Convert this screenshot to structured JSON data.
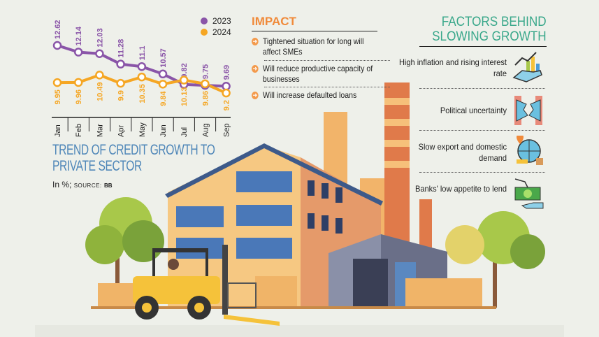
{
  "chart_data": {
    "type": "line",
    "title": "TREND OF CREDIT GROWTH TO PRIVATE SECTOR",
    "subtitle": "In %;",
    "source_label": "SOURCE:",
    "source": "BB",
    "categories": [
      "Jan",
      "Feb",
      "Mar",
      "Apr",
      "May",
      "Jun",
      "Jul",
      "Aug",
      "Sep"
    ],
    "series": [
      {
        "name": "2023",
        "color": "#8a55a8",
        "values": [
          12.62,
          12.14,
          12.03,
          11.28,
          11.1,
          10.57,
          9.82,
          9.75,
          9.69
        ]
      },
      {
        "name": "2024",
        "color": "#f5a623",
        "values": [
          9.95,
          9.96,
          10.49,
          9.9,
          10.35,
          9.84,
          10.13,
          9.86,
          9.2
        ]
      }
    ],
    "legend_position": "top-right",
    "grid": false
  },
  "impact": {
    "heading": "IMPACT",
    "items": [
      "Tightened situation for long will affect SMEs",
      "Will reduce productive capacity of businesses",
      "Will increase defaulted loans"
    ]
  },
  "factors": {
    "heading_line1": "FACTORS BEHIND",
    "heading_line2": "SLOWING GROWTH",
    "items": [
      {
        "label": "High inflation and rising interest rate",
        "icon": "growth-chart-hand-icon"
      },
      {
        "label": "Political uncertainty",
        "icon": "torn-handshake-icon"
      },
      {
        "label": "Slow export and domestic demand",
        "icon": "globe-export-icon"
      },
      {
        "label": "Banks' low appetite to lend",
        "icon": "money-hand-icon"
      }
    ]
  }
}
